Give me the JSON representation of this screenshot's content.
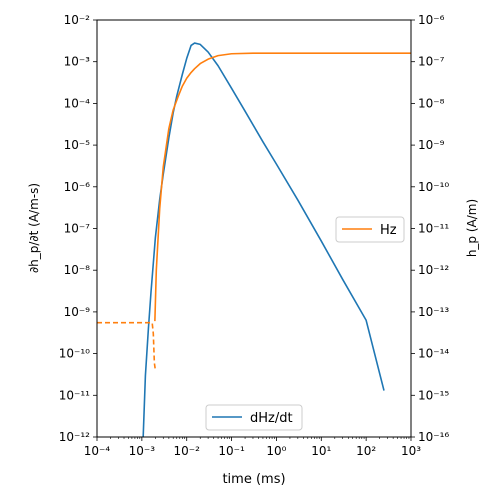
{
  "chart_data": {
    "type": "line",
    "title": "",
    "xlabel": "time (ms)",
    "ylabel_left": "∂h_p/∂t (A/m-s)",
    "ylabel_right": "h_p (A/m)",
    "x_scale": "log",
    "y_scale_left": "log",
    "y_scale_right": "log",
    "xlim": [
      0.0001,
      1000
    ],
    "ylim_left": [
      1e-12,
      0.01
    ],
    "ylim_right": [
      1e-16,
      1e-06
    ],
    "x_tick_labels": [
      "10⁻⁴",
      "10⁻³",
      "10⁻²",
      "10⁻¹",
      "10⁰",
      "10¹",
      "10²",
      "10³"
    ],
    "y_left_tick_labels": [
      "10⁻¹²",
      "10⁻¹¹",
      "10⁻¹⁰",
      "10⁻⁹",
      "10⁻⁸",
      "10⁻⁷",
      "10⁻⁶",
      "10⁻⁵",
      "10⁻⁴",
      "10⁻³",
      "10⁻²"
    ],
    "y_right_tick_labels": [
      "10⁻¹⁶",
      "10⁻¹⁵",
      "10⁻¹⁴",
      "10⁻¹³",
      "10⁻¹²",
      "10⁻¹¹",
      "10⁻¹⁰",
      "10⁻⁹",
      "10⁻⁸",
      "10⁻⁷",
      "10⁻⁶"
    ],
    "grid": false,
    "series": [
      {
        "name": "dHz/dt",
        "axis": "left",
        "color": "#1f77b4",
        "style": "solid",
        "legend_location": "lower center",
        "x": [
          0.00107,
          0.0012,
          0.0014,
          0.0016,
          0.002,
          0.0025,
          0.003,
          0.004,
          0.005,
          0.006,
          0.008,
          0.01,
          0.0125,
          0.015,
          0.02,
          0.03,
          0.05,
          0.1,
          0.2,
          0.5,
          1,
          3,
          10,
          30,
          100,
          250
        ],
        "y": [
          1e-12,
          3e-11,
          4e-10,
          3e-09,
          6e-08,
          5e-07,
          2e-06,
          1.5e-05,
          6e-05,
          0.00015,
          0.0005,
          0.0012,
          0.00245,
          0.0028,
          0.0026,
          0.0017,
          0.0008,
          0.00023,
          6.5e-05,
          1.2e-05,
          3.5e-06,
          4.8e-07,
          5e-08,
          6e-09,
          6.3e-10,
          1.3e-11
        ]
      },
      {
        "name": "Hz",
        "axis": "right",
        "color": "#ff7f0e",
        "style": "solid",
        "legend_location": "center right",
        "x": [
          0.00195,
          0.0021,
          0.0025,
          0.003,
          0.004,
          0.005,
          0.0065,
          0.008,
          0.01,
          0.0125,
          0.015,
          0.02,
          0.03,
          0.05,
          0.1,
          0.3,
          1,
          1000
        ],
        "y": [
          6e-14,
          1e-12,
          3e-11,
          3e-10,
          2.5e-09,
          7e-09,
          1.5e-08,
          2.6e-08,
          4e-08,
          5.5e-08,
          6.8e-08,
          9e-08,
          1.15e-07,
          1.4e-07,
          1.55e-07,
          1.6e-07,
          1.6e-07,
          1.6e-07
        ]
      },
      {
        "name": "",
        "axis": "right",
        "color": "#ff7f0e",
        "style": "dashed",
        "x": [
          0.0001,
          0.0017,
          0.0018,
          0.0019,
          0.002
        ],
        "y": [
          5.5e-14,
          5.5e-14,
          3e-14,
          6e-15,
          4e-15
        ]
      }
    ]
  }
}
